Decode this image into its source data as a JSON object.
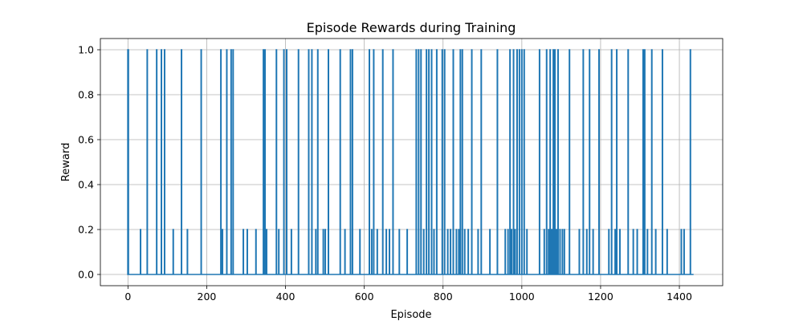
{
  "chart_data": {
    "type": "line",
    "title": "Episode Rewards during Training",
    "xlabel": "Episode",
    "ylabel": "Reward",
    "xlim": [
      -70,
      1510
    ],
    "ylim": [
      -0.05,
      1.05
    ],
    "xticks": [
      0,
      200,
      400,
      600,
      800,
      1000,
      1200,
      1400
    ],
    "yticks": [
      0.0,
      0.2,
      0.4,
      0.6,
      0.8,
      1.0
    ],
    "xtick_labels": [
      "0",
      "200",
      "400",
      "600",
      "800",
      "1000",
      "1200",
      "1400"
    ],
    "ytick_labels": [
      "0.0",
      "0.2",
      "0.4",
      "0.6",
      "0.8",
      "1.0"
    ],
    "grid": true,
    "line_color": "#1f77b4",
    "x_range": [
      0,
      1436
    ],
    "baseline": 0,
    "spikes": [
      {
        "x": 0,
        "y": 1.0
      },
      {
        "x": 1,
        "y": 1.0
      },
      {
        "x": 32,
        "y": 0.2
      },
      {
        "x": 49,
        "y": 1.0
      },
      {
        "x": 73,
        "y": 1.0
      },
      {
        "x": 85,
        "y": 1.0
      },
      {
        "x": 93,
        "y": 1.0
      },
      {
        "x": 115,
        "y": 0.2
      },
      {
        "x": 136,
        "y": 1.0
      },
      {
        "x": 151,
        "y": 0.2
      },
      {
        "x": 186,
        "y": 1.0
      },
      {
        "x": 236,
        "y": 1.0
      },
      {
        "x": 240,
        "y": 0.2
      },
      {
        "x": 251,
        "y": 1.0
      },
      {
        "x": 262,
        "y": 1.0
      },
      {
        "x": 267,
        "y": 1.0
      },
      {
        "x": 293,
        "y": 0.2
      },
      {
        "x": 303,
        "y": 0.2
      },
      {
        "x": 325,
        "y": 0.2
      },
      {
        "x": 344,
        "y": 1.0
      },
      {
        "x": 348,
        "y": 1.0
      },
      {
        "x": 352,
        "y": 0.2
      },
      {
        "x": 377,
        "y": 1.0
      },
      {
        "x": 383,
        "y": 0.2
      },
      {
        "x": 396,
        "y": 1.0
      },
      {
        "x": 403,
        "y": 1.0
      },
      {
        "x": 415,
        "y": 0.2
      },
      {
        "x": 433,
        "y": 1.0
      },
      {
        "x": 459,
        "y": 1.0
      },
      {
        "x": 467,
        "y": 1.0
      },
      {
        "x": 477,
        "y": 0.2
      },
      {
        "x": 482,
        "y": 1.0
      },
      {
        "x": 496,
        "y": 0.2
      },
      {
        "x": 501,
        "y": 0.2
      },
      {
        "x": 509,
        "y": 1.0
      },
      {
        "x": 539,
        "y": 1.0
      },
      {
        "x": 551,
        "y": 0.2
      },
      {
        "x": 565,
        "y": 1.0
      },
      {
        "x": 570,
        "y": 1.0
      },
      {
        "x": 589,
        "y": 0.2
      },
      {
        "x": 613,
        "y": 1.0
      },
      {
        "x": 619,
        "y": 0.2
      },
      {
        "x": 624,
        "y": 1.0
      },
      {
        "x": 633,
        "y": 0.2
      },
      {
        "x": 647,
        "y": 1.0
      },
      {
        "x": 656,
        "y": 0.2
      },
      {
        "x": 664,
        "y": 0.2
      },
      {
        "x": 673,
        "y": 1.0
      },
      {
        "x": 689,
        "y": 0.2
      },
      {
        "x": 709,
        "y": 0.2
      },
      {
        "x": 732,
        "y": 1.0
      },
      {
        "x": 738,
        "y": 1.0
      },
      {
        "x": 744,
        "y": 1.0
      },
      {
        "x": 751,
        "y": 0.2
      },
      {
        "x": 758,
        "y": 1.0
      },
      {
        "x": 764,
        "y": 1.0
      },
      {
        "x": 771,
        "y": 1.0
      },
      {
        "x": 777,
        "y": 0.2
      },
      {
        "x": 784,
        "y": 1.0
      },
      {
        "x": 798,
        "y": 1.0
      },
      {
        "x": 804,
        "y": 1.0
      },
      {
        "x": 812,
        "y": 0.2
      },
      {
        "x": 819,
        "y": 0.2
      },
      {
        "x": 826,
        "y": 1.0
      },
      {
        "x": 834,
        "y": 0.2
      },
      {
        "x": 840,
        "y": 0.2
      },
      {
        "x": 844,
        "y": 1.0
      },
      {
        "x": 849,
        "y": 1.0
      },
      {
        "x": 855,
        "y": 0.2
      },
      {
        "x": 864,
        "y": 0.2
      },
      {
        "x": 873,
        "y": 1.0
      },
      {
        "x": 889,
        "y": 0.2
      },
      {
        "x": 897,
        "y": 1.0
      },
      {
        "x": 919,
        "y": 0.2
      },
      {
        "x": 938,
        "y": 1.0
      },
      {
        "x": 958,
        "y": 0.2
      },
      {
        "x": 965,
        "y": 0.2
      },
      {
        "x": 970,
        "y": 1.0
      },
      {
        "x": 974,
        "y": 0.2
      },
      {
        "x": 979,
        "y": 1.0
      },
      {
        "x": 983,
        "y": 0.2
      },
      {
        "x": 988,
        "y": 1.0
      },
      {
        "x": 994,
        "y": 1.0
      },
      {
        "x": 1000,
        "y": 1.0
      },
      {
        "x": 1006,
        "y": 1.0
      },
      {
        "x": 1013,
        "y": 0.2
      },
      {
        "x": 1045,
        "y": 1.0
      },
      {
        "x": 1057,
        "y": 0.2
      },
      {
        "x": 1063,
        "y": 1.0
      },
      {
        "x": 1068,
        "y": 0.2
      },
      {
        "x": 1072,
        "y": 1.0
      },
      {
        "x": 1076,
        "y": 0.2
      },
      {
        "x": 1080,
        "y": 1.0
      },
      {
        "x": 1084,
        "y": 1.0
      },
      {
        "x": 1088,
        "y": 0.2
      },
      {
        "x": 1092,
        "y": 1.0
      },
      {
        "x": 1097,
        "y": 0.2
      },
      {
        "x": 1103,
        "y": 0.2
      },
      {
        "x": 1108,
        "y": 0.2
      },
      {
        "x": 1121,
        "y": 1.0
      },
      {
        "x": 1146,
        "y": 0.2
      },
      {
        "x": 1156,
        "y": 1.0
      },
      {
        "x": 1165,
        "y": 0.2
      },
      {
        "x": 1172,
        "y": 1.0
      },
      {
        "x": 1181,
        "y": 0.2
      },
      {
        "x": 1196,
        "y": 1.0
      },
      {
        "x": 1221,
        "y": 0.2
      },
      {
        "x": 1228,
        "y": 1.0
      },
      {
        "x": 1237,
        "y": 0.2
      },
      {
        "x": 1241,
        "y": 1.0
      },
      {
        "x": 1249,
        "y": 0.2
      },
      {
        "x": 1270,
        "y": 1.0
      },
      {
        "x": 1283,
        "y": 0.2
      },
      {
        "x": 1293,
        "y": 0.2
      },
      {
        "x": 1308,
        "y": 1.0
      },
      {
        "x": 1312,
        "y": 1.0
      },
      {
        "x": 1319,
        "y": 0.2
      },
      {
        "x": 1330,
        "y": 1.0
      },
      {
        "x": 1340,
        "y": 0.2
      },
      {
        "x": 1357,
        "y": 1.0
      },
      {
        "x": 1369,
        "y": 0.2
      },
      {
        "x": 1405,
        "y": 0.2
      },
      {
        "x": 1412,
        "y": 0.2
      },
      {
        "x": 1428,
        "y": 1.0
      }
    ]
  }
}
